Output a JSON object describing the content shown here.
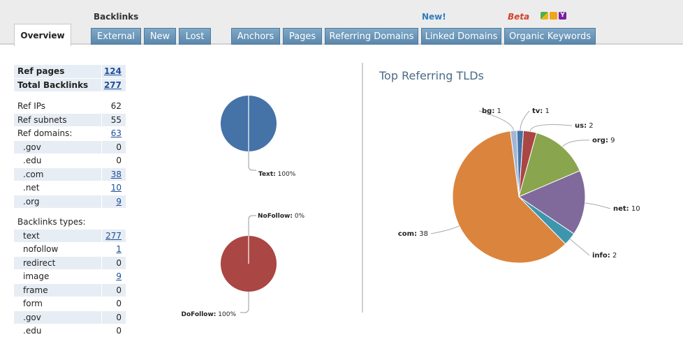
{
  "header": {
    "group_label": "Backlinks",
    "new_label": "New!",
    "beta_label": "Beta",
    "search_engine_icons": [
      "google-icon",
      "bing-icon",
      "yahoo-icon"
    ],
    "tabs": [
      {
        "label": "Overview",
        "active": true
      },
      {
        "label": "External"
      },
      {
        "label": "New"
      },
      {
        "label": "Lost"
      },
      {
        "label": "Anchors"
      },
      {
        "label": "Pages"
      },
      {
        "label": "Referring Domains"
      },
      {
        "label": "Linked Domains"
      },
      {
        "label": "Organic Keywords"
      }
    ]
  },
  "stats": {
    "group1": [
      {
        "label": "Ref pages",
        "value": "124",
        "link": true
      },
      {
        "label": "Total Backlinks",
        "value": "277",
        "link": true
      }
    ],
    "group2": [
      {
        "label": "Ref IPs",
        "value": "62",
        "link": false
      },
      {
        "label": "Ref subnets",
        "value": "55",
        "link": false
      },
      {
        "label": "Ref domains:",
        "value": "63",
        "link": true
      },
      {
        "label": ".gov",
        "value": "0",
        "link": false
      },
      {
        "label": ".edu",
        "value": "0",
        "link": false
      },
      {
        "label": ".com",
        "value": "38",
        "link": true
      },
      {
        "label": ".net",
        "value": "10",
        "link": true
      },
      {
        "label": ".org",
        "value": "9",
        "link": true
      }
    ],
    "group3_title": "Backlinks types:",
    "group3": [
      {
        "label": "text",
        "value": "277",
        "link": true
      },
      {
        "label": "nofollow",
        "value": "1",
        "link": true
      },
      {
        "label": "redirect",
        "value": "0",
        "link": false
      },
      {
        "label": "image",
        "value": "9",
        "link": true
      },
      {
        "label": "frame",
        "value": "0",
        "link": false
      },
      {
        "label": "form",
        "value": "0",
        "link": false
      },
      {
        "label": ".gov",
        "value": "0",
        "link": false
      },
      {
        "label": ".edu",
        "value": "0",
        "link": false
      }
    ]
  },
  "chart_data": [
    {
      "type": "pie",
      "title": "",
      "slices": [
        {
          "label": "Text",
          "value": 100,
          "display": "100%",
          "color": "#4572a7"
        }
      ]
    },
    {
      "type": "pie",
      "title": "",
      "slices": [
        {
          "label": "NoFollow",
          "value": 0,
          "display": "0%",
          "color": "#ffffff"
        },
        {
          "label": "DoFollow",
          "value": 100,
          "display": "100%",
          "color": "#aa4643"
        }
      ]
    },
    {
      "type": "pie",
      "title": "Top Referring TLDs",
      "slices": [
        {
          "label": "bg",
          "value": 1,
          "color": "#a2b6d4"
        },
        {
          "label": "tv",
          "value": 1,
          "color": "#4572a7"
        },
        {
          "label": "us",
          "value": 2,
          "color": "#aa4643"
        },
        {
          "label": "org",
          "value": 9,
          "color": "#89a54e"
        },
        {
          "label": "net",
          "value": 10,
          "color": "#80699b"
        },
        {
          "label": "info",
          "value": 2,
          "color": "#3d96ae"
        },
        {
          "label": "com",
          "value": 38,
          "color": "#db843d"
        }
      ]
    }
  ]
}
